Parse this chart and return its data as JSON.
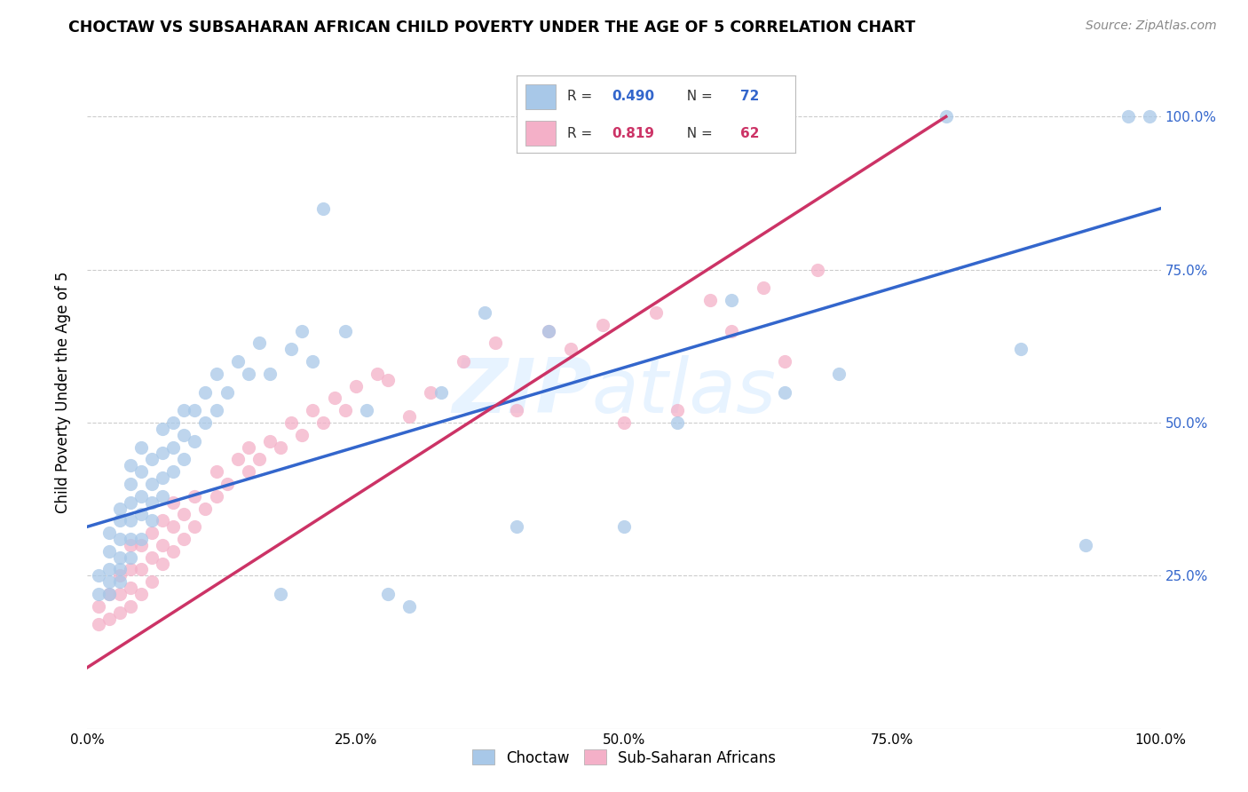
{
  "title": "CHOCTAW VS SUBSAHARAN AFRICAN CHILD POVERTY UNDER THE AGE OF 5 CORRELATION CHART",
  "source": "Source: ZipAtlas.com",
  "ylabel": "Child Poverty Under the Age of 5",
  "xlim": [
    0.0,
    1.0
  ],
  "ylim": [
    0.0,
    1.1
  ],
  "choctaw_color": "#a8c8e8",
  "subsaharan_color": "#f4b0c8",
  "choctaw_line_color": "#3366cc",
  "subsaharan_line_color": "#cc3366",
  "R_choctaw": 0.49,
  "N_choctaw": 72,
  "R_subsaharan": 0.819,
  "N_subsaharan": 62,
  "watermark_zip": "ZIP",
  "watermark_atlas": "atlas",
  "ytick_labels": [
    "25.0%",
    "50.0%",
    "75.0%",
    "100.0%"
  ],
  "ytick_values": [
    0.25,
    0.5,
    0.75,
    1.0
  ],
  "xtick_labels": [
    "0.0%",
    "25.0%",
    "50.0%",
    "75.0%",
    "100.0%"
  ],
  "xtick_values": [
    0.0,
    0.25,
    0.5,
    0.75,
    1.0
  ],
  "choctaw_x": [
    0.01,
    0.01,
    0.02,
    0.02,
    0.02,
    0.02,
    0.02,
    0.03,
    0.03,
    0.03,
    0.03,
    0.03,
    0.03,
    0.04,
    0.04,
    0.04,
    0.04,
    0.04,
    0.04,
    0.05,
    0.05,
    0.05,
    0.05,
    0.05,
    0.06,
    0.06,
    0.06,
    0.06,
    0.07,
    0.07,
    0.07,
    0.07,
    0.08,
    0.08,
    0.08,
    0.09,
    0.09,
    0.09,
    0.1,
    0.1,
    0.11,
    0.11,
    0.12,
    0.12,
    0.13,
    0.14,
    0.15,
    0.16,
    0.17,
    0.18,
    0.19,
    0.2,
    0.21,
    0.22,
    0.24,
    0.26,
    0.28,
    0.3,
    0.33,
    0.37,
    0.4,
    0.43,
    0.5,
    0.55,
    0.6,
    0.65,
    0.7,
    0.8,
    0.87,
    0.93,
    0.97,
    0.99
  ],
  "choctaw_y": [
    0.22,
    0.25,
    0.22,
    0.24,
    0.26,
    0.29,
    0.32,
    0.24,
    0.26,
    0.28,
    0.31,
    0.34,
    0.36,
    0.28,
    0.31,
    0.34,
    0.37,
    0.4,
    0.43,
    0.31,
    0.35,
    0.38,
    0.42,
    0.46,
    0.34,
    0.37,
    0.4,
    0.44,
    0.38,
    0.41,
    0.45,
    0.49,
    0.42,
    0.46,
    0.5,
    0.44,
    0.48,
    0.52,
    0.47,
    0.52,
    0.5,
    0.55,
    0.52,
    0.58,
    0.55,
    0.6,
    0.58,
    0.63,
    0.58,
    0.22,
    0.62,
    0.65,
    0.6,
    0.85,
    0.65,
    0.52,
    0.22,
    0.2,
    0.55,
    0.68,
    0.33,
    0.65,
    0.33,
    0.5,
    0.7,
    0.55,
    0.58,
    1.0,
    0.62,
    0.3,
    1.0,
    1.0
  ],
  "subsaharan_x": [
    0.01,
    0.01,
    0.02,
    0.02,
    0.03,
    0.03,
    0.03,
    0.04,
    0.04,
    0.04,
    0.04,
    0.05,
    0.05,
    0.05,
    0.06,
    0.06,
    0.06,
    0.07,
    0.07,
    0.07,
    0.08,
    0.08,
    0.08,
    0.09,
    0.09,
    0.1,
    0.1,
    0.11,
    0.12,
    0.12,
    0.13,
    0.14,
    0.15,
    0.15,
    0.16,
    0.17,
    0.18,
    0.19,
    0.2,
    0.21,
    0.22,
    0.23,
    0.24,
    0.25,
    0.27,
    0.28,
    0.3,
    0.32,
    0.35,
    0.38,
    0.4,
    0.43,
    0.45,
    0.48,
    0.5,
    0.53,
    0.55,
    0.58,
    0.6,
    0.63,
    0.65,
    0.68
  ],
  "subsaharan_y": [
    0.17,
    0.2,
    0.18,
    0.22,
    0.19,
    0.22,
    0.25,
    0.2,
    0.23,
    0.26,
    0.3,
    0.22,
    0.26,
    0.3,
    0.24,
    0.28,
    0.32,
    0.27,
    0.3,
    0.34,
    0.29,
    0.33,
    0.37,
    0.31,
    0.35,
    0.33,
    0.38,
    0.36,
    0.38,
    0.42,
    0.4,
    0.44,
    0.42,
    0.46,
    0.44,
    0.47,
    0.46,
    0.5,
    0.48,
    0.52,
    0.5,
    0.54,
    0.52,
    0.56,
    0.58,
    0.57,
    0.51,
    0.55,
    0.6,
    0.63,
    0.52,
    0.65,
    0.62,
    0.66,
    0.5,
    0.68,
    0.52,
    0.7,
    0.65,
    0.72,
    0.6,
    0.75
  ],
  "line_choctaw_x0": 0.0,
  "line_choctaw_y0": 0.33,
  "line_choctaw_x1": 1.0,
  "line_choctaw_y1": 0.85,
  "line_subsaharan_x0": 0.0,
  "line_subsaharan_y0": 0.1,
  "line_subsaharan_x1": 0.8,
  "line_subsaharan_y1": 1.0
}
